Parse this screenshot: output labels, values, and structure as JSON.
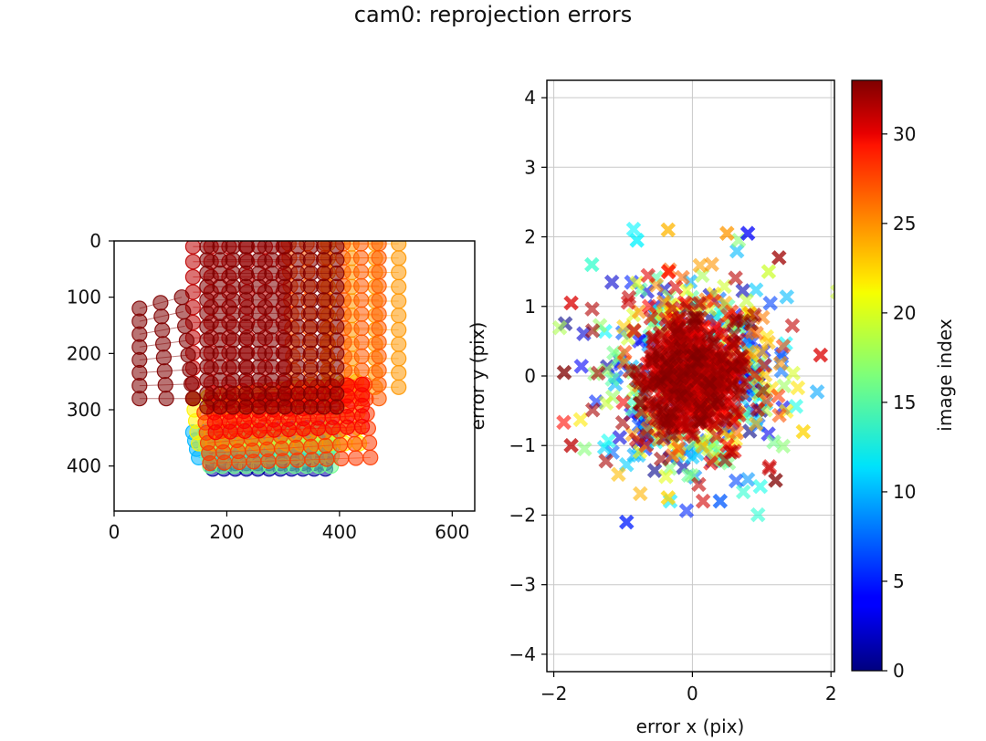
{
  "figure": {
    "suptitle": "cam0: reprojection errors"
  },
  "chart_data": [
    {
      "type": "scatter",
      "panel": "image-points",
      "xlabel": "",
      "ylabel": "",
      "xlim": [
        0,
        640
      ],
      "ylim": [
        480,
        0
      ],
      "y_inverted": true,
      "xticks": [
        0,
        200,
        400,
        600
      ],
      "yticks": [
        0,
        100,
        200,
        300,
        400
      ],
      "xtick_labels": [
        "0",
        "200",
        "400",
        "600"
      ],
      "ytick_labels": [
        "0",
        "100",
        "200",
        "300",
        "400"
      ],
      "marker": "circle",
      "alpha": 0.55,
      "grid": false,
      "colormap": "jet",
      "color_by": "image index",
      "groups": [
        {
          "image_index": 1,
          "corners": [
            [
              175,
              385
            ],
            [
              375,
              385
            ],
            [
              175,
              405
            ],
            [
              375,
              405
            ]
          ],
          "rows": 3,
          "cols": 11
        },
        {
          "image_index": 10,
          "corners": [
            [
              140,
              340
            ],
            [
              385,
              330
            ],
            [
              150,
              385
            ],
            [
              380,
              385
            ]
          ],
          "rows": 4,
          "cols": 12
        },
        {
          "image_index": 16,
          "corners": [
            [
              160,
              350
            ],
            [
              390,
              345
            ],
            [
              170,
              400
            ],
            [
              385,
              400
            ]
          ],
          "rows": 4,
          "cols": 11
        },
        {
          "image_index": 21,
          "corners": [
            [
              140,
              280
            ],
            [
              430,
              250
            ],
            [
              150,
              360
            ],
            [
              435,
              360
            ]
          ],
          "rows": 5,
          "cols": 12
        },
        {
          "image_index": 24,
          "corners": [
            [
              380,
              5
            ],
            [
              505,
              5
            ],
            [
              380,
              260
            ],
            [
              505,
              260
            ]
          ],
          "rows": 11,
          "cols": 4
        },
        {
          "image_index": 26,
          "corners": [
            [
              310,
              5
            ],
            [
              470,
              5
            ],
            [
              320,
              280
            ],
            [
              470,
              280
            ]
          ],
          "rows": 12,
          "cols": 6
        },
        {
          "image_index": 27,
          "corners": [
            [
              160,
              305
            ],
            [
              445,
              255
            ],
            [
              170,
              395
            ],
            [
              455,
              385
            ]
          ],
          "rows": 6,
          "cols": 12
        },
        {
          "image_index": 29,
          "corners": [
            [
              175,
              270
            ],
            [
              440,
              255
            ],
            [
              180,
              340
            ],
            [
              440,
              330
            ]
          ],
          "rows": 5,
          "cols": 11
        },
        {
          "image_index": 31,
          "corners": [
            [
              140,
              10
            ],
            [
              300,
              10
            ],
            [
              140,
              280
            ],
            [
              300,
              280
            ]
          ],
          "rows": 11,
          "cols": 6
        },
        {
          "image_index": 33,
          "corners": [
            [
              45,
              120
            ],
            [
              120,
              100
            ],
            [
              45,
              280
            ],
            [
              140,
              280
            ]
          ],
          "rows": 8,
          "cols": 3
        },
        {
          "image_index": 33,
          "corners": [
            [
              165,
              10
            ],
            [
              395,
              10
            ],
            [
              165,
              295
            ],
            [
              395,
              295
            ]
          ],
          "rows": 13,
          "cols": 11
        }
      ]
    },
    {
      "type": "scatter",
      "panel": "reprojection-errors",
      "xlabel": "error x (pix)",
      "ylabel": "error y (pix)",
      "xlim": [
        -2.1,
        2.05
      ],
      "ylim": [
        -4.25,
        4.25
      ],
      "xticks": [
        -2,
        0,
        2
      ],
      "yticks": [
        -4,
        -3,
        -2,
        -1,
        0,
        1,
        2,
        3,
        4
      ],
      "xtick_labels": [
        "−2",
        "0",
        "2"
      ],
      "ytick_labels": [
        "−4",
        "−3",
        "−2",
        "−1",
        "0",
        "1",
        "2",
        "3",
        "4"
      ],
      "marker": "x",
      "alpha": 0.6,
      "grid": true,
      "colormap": "jet",
      "color_by": "image index",
      "cloud": {
        "mean": [
          0,
          0
        ],
        "std": [
          0.55,
          0.6
        ],
        "count": 900
      },
      "outliers": [
        {
          "x": -0.95,
          "y": -2.1,
          "image_index": 5
        },
        {
          "x": 0.4,
          "y": -1.8,
          "image_index": 7
        },
        {
          "x": -0.35,
          "y": -1.75,
          "image_index": 22
        },
        {
          "x": 0.8,
          "y": 2.05,
          "image_index": 4
        },
        {
          "x": -0.35,
          "y": 2.1,
          "image_index": 23
        },
        {
          "x": 0.5,
          "y": 2.05,
          "image_index": 24
        },
        {
          "x": -0.8,
          "y": 1.95,
          "image_index": 12
        },
        {
          "x": -1.85,
          "y": 0.05,
          "image_index": 33
        },
        {
          "x": 1.85,
          "y": 0.3,
          "image_index": 30
        },
        {
          "x": -1.75,
          "y": -1.0,
          "image_index": 31
        },
        {
          "x": 1.6,
          "y": -0.8,
          "image_index": 22
        },
        {
          "x": 1.2,
          "y": -1.5,
          "image_index": 33
        },
        {
          "x": 1.25,
          "y": 1.7,
          "image_index": 32
        },
        {
          "x": -1.45,
          "y": 1.6,
          "image_index": 14
        },
        {
          "x": -1.75,
          "y": 1.05,
          "image_index": 30
        },
        {
          "x": 1.1,
          "y": 1.5,
          "image_index": 19
        }
      ]
    },
    {
      "type": "colorbar",
      "label": "image index",
      "colormap": "jet",
      "range": [
        0,
        33
      ],
      "ticks": [
        0,
        5,
        10,
        15,
        20,
        25,
        30
      ],
      "tick_labels": [
        "0",
        "5",
        "10",
        "15",
        "20",
        "25",
        "30"
      ]
    }
  ]
}
